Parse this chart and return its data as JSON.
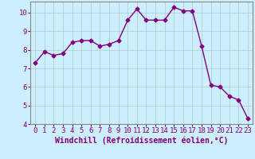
{
  "x": [
    0,
    1,
    2,
    3,
    4,
    5,
    6,
    7,
    8,
    9,
    10,
    11,
    12,
    13,
    14,
    15,
    16,
    17,
    18,
    19,
    20,
    21,
    22,
    23
  ],
  "y": [
    7.3,
    7.9,
    7.7,
    7.8,
    8.4,
    8.5,
    8.5,
    8.2,
    8.3,
    8.5,
    9.6,
    10.2,
    9.6,
    9.6,
    9.6,
    10.3,
    10.1,
    10.1,
    8.2,
    6.1,
    6.0,
    5.5,
    5.3,
    4.3
  ],
  "line_color": "#800080",
  "marker": "D",
  "marker_size": 2.5,
  "bg_color": "#cceeff",
  "grid_color": "#aacccc",
  "xlabel": "Windchill (Refroidissement éolien,°C)",
  "ylim": [
    4,
    10.6
  ],
  "xlim": [
    -0.5,
    23.5
  ],
  "yticks": [
    4,
    5,
    6,
    7,
    8,
    9,
    10
  ],
  "xticks": [
    0,
    1,
    2,
    3,
    4,
    5,
    6,
    7,
    8,
    9,
    10,
    11,
    12,
    13,
    14,
    15,
    16,
    17,
    18,
    19,
    20,
    21,
    22,
    23
  ],
  "tick_label_fontsize": 6.5,
  "xlabel_fontsize": 7,
  "line_width": 1.0,
  "spine_color": "#888888"
}
